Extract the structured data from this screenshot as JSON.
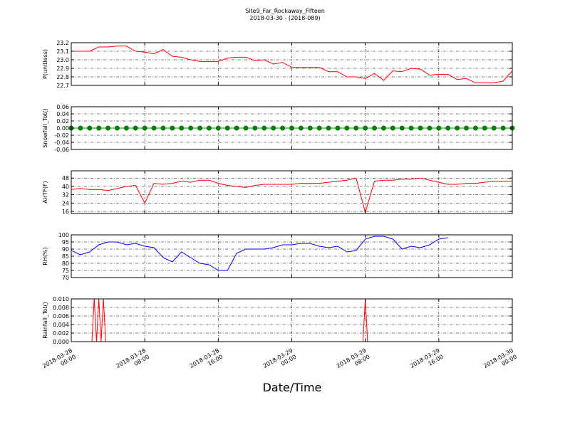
{
  "title": "Site9_Far_Rockaway_Fifteen",
  "subtitle": "2018-03-30 - (2018-089)",
  "xlabel": "Date/Time",
  "xlim": [
    "2018-03-28 00:00",
    "2018-03-30 00:00"
  ],
  "xticks": [
    "2018-03-28 00:00",
    "2018-03-28 08:00",
    "2018-03-28 16:00",
    "2018-03-29 00:00",
    "2018-03-29 08:00",
    "2018-03-29 16:00",
    "2018-03-30 00:00"
  ],
  "chart_data": [
    {
      "type": "line",
      "ylabel": "P(unitless)",
      "color": "red",
      "grid": true,
      "ylim": [
        22.7,
        23.2
      ],
      "yticks": [
        22.7,
        22.8,
        22.9,
        {
          "value": 23,
          "label": "23.0"
        },
        23.1,
        23.2
      ],
      "x": [
        "2018-03-28 00:00",
        "2018-03-28 01:00",
        "2018-03-28 02:00",
        "2018-03-28 03:00",
        "2018-03-28 04:00",
        "2018-03-28 05:00",
        "2018-03-28 06:00",
        "2018-03-28 07:00",
        "2018-03-28 08:00",
        "2018-03-28 09:00",
        "2018-03-28 10:00",
        "2018-03-28 11:00",
        "2018-03-28 12:00",
        "2018-03-28 13:00",
        "2018-03-28 14:00",
        "2018-03-28 15:00",
        "2018-03-28 16:00",
        "2018-03-28 17:00",
        "2018-03-28 18:00",
        "2018-03-28 19:00",
        "2018-03-28 20:00",
        "2018-03-28 21:00",
        "2018-03-28 22:00",
        "2018-03-28 23:00",
        "2018-03-29 00:00",
        "2018-03-29 01:00",
        "2018-03-29 02:00",
        "2018-03-29 03:00",
        "2018-03-29 04:00",
        "2018-03-29 05:00",
        "2018-03-29 06:00",
        "2018-03-29 07:00",
        "2018-03-29 08:00",
        "2018-03-29 09:00",
        "2018-03-29 10:00",
        "2018-03-29 11:00",
        "2018-03-29 12:00",
        "2018-03-29 13:00",
        "2018-03-29 14:00",
        "2018-03-29 15:00",
        "2018-03-29 16:00",
        "2018-03-29 17:00",
        "2018-03-29 18:00",
        "2018-03-29 19:00",
        "2018-03-29 20:00",
        "2018-03-29 21:00",
        "2018-03-29 22:00",
        "2018-03-29 23:00",
        "2018-03-30 00:00"
      ],
      "values": [
        23.1,
        23.1,
        23.1,
        23.15,
        23.15,
        23.16,
        23.16,
        23.1,
        23.09,
        23.07,
        23.12,
        23.04,
        23.03,
        23.0,
        22.98,
        22.98,
        22.98,
        23.02,
        23.03,
        23.03,
        22.99,
        23.0,
        22.95,
        22.97,
        22.91,
        22.91,
        22.91,
        22.91,
        22.86,
        22.86,
        22.8,
        22.8,
        22.78,
        22.84,
        22.76,
        22.87,
        22.86,
        22.9,
        22.89,
        22.82,
        22.83,
        22.83,
        22.77,
        22.78,
        22.73,
        22.73,
        22.73,
        22.75,
        22.87
      ]
    },
    {
      "type": "line",
      "ylabel": "Snowfall_Tot()",
      "color": "green",
      "marker": true,
      "grid": true,
      "ylim": [
        -0.06,
        0.06
      ],
      "yticks": [
        -0.06,
        -0.04,
        -0.02,
        {
          "value": 0,
          "label": "0.00"
        },
        0.02,
        0.04,
        0.06
      ],
      "x": [
        "2018-03-28 00:00",
        "2018-03-28 01:00",
        "2018-03-28 02:00",
        "2018-03-28 03:00",
        "2018-03-28 04:00",
        "2018-03-28 05:00",
        "2018-03-28 06:00",
        "2018-03-28 07:00",
        "2018-03-28 08:00",
        "2018-03-28 09:00",
        "2018-03-28 10:00",
        "2018-03-28 11:00",
        "2018-03-28 12:00",
        "2018-03-28 13:00",
        "2018-03-28 14:00",
        "2018-03-28 15:00",
        "2018-03-28 16:00",
        "2018-03-28 17:00",
        "2018-03-28 18:00",
        "2018-03-28 19:00",
        "2018-03-28 20:00",
        "2018-03-28 21:00",
        "2018-03-28 22:00",
        "2018-03-28 23:00",
        "2018-03-29 00:00",
        "2018-03-29 01:00",
        "2018-03-29 02:00",
        "2018-03-29 03:00",
        "2018-03-29 04:00",
        "2018-03-29 05:00",
        "2018-03-29 06:00",
        "2018-03-29 07:00",
        "2018-03-29 08:00",
        "2018-03-29 09:00",
        "2018-03-29 10:00",
        "2018-03-29 11:00",
        "2018-03-29 12:00",
        "2018-03-29 13:00",
        "2018-03-29 14:00",
        "2018-03-29 15:00",
        "2018-03-29 16:00",
        "2018-03-29 17:00",
        "2018-03-29 18:00",
        "2018-03-29 19:00",
        "2018-03-29 20:00",
        "2018-03-29 21:00",
        "2018-03-29 22:00",
        "2018-03-29 23:00",
        "2018-03-30 00:00"
      ],
      "values": [
        0,
        0,
        0,
        0,
        0,
        0,
        0,
        0,
        0,
        0,
        0,
        0,
        0,
        0,
        0,
        0,
        0,
        0,
        0,
        0,
        0,
        0,
        0,
        0,
        0,
        0,
        0,
        0,
        0,
        0,
        0,
        0,
        0,
        0,
        0,
        0,
        0,
        0,
        0,
        0,
        0,
        0,
        0,
        0,
        0,
        0,
        0,
        0,
        0
      ]
    },
    {
      "type": "line",
      "ylabel": "AirTF(F)",
      "color": "red",
      "grid": true,
      "ylim": [
        14,
        55
      ],
      "yticks": [
        16,
        24,
        32,
        40,
        48
      ],
      "x": [
        "2018-03-28 00:00",
        "2018-03-28 01:00",
        "2018-03-28 02:00",
        "2018-03-28 03:00",
        "2018-03-28 04:00",
        "2018-03-28 05:00",
        "2018-03-28 06:00",
        "2018-03-28 07:00",
        "2018-03-28 08:00",
        "2018-03-28 09:00",
        "2018-03-28 10:00",
        "2018-03-28 11:00",
        "2018-03-28 12:00",
        "2018-03-28 13:00",
        "2018-03-28 14:00",
        "2018-03-28 15:00",
        "2018-03-28 16:00",
        "2018-03-28 17:00",
        "2018-03-28 18:00",
        "2018-03-28 19:00",
        "2018-03-28 20:00",
        "2018-03-28 21:00",
        "2018-03-28 22:00",
        "2018-03-28 23:00",
        "2018-03-29 00:00",
        "2018-03-29 01:00",
        "2018-03-29 02:00",
        "2018-03-29 03:00",
        "2018-03-29 04:00",
        "2018-03-29 05:00",
        "2018-03-29 06:00",
        "2018-03-29 07:00",
        "2018-03-29 08:00",
        "2018-03-29 09:00",
        "2018-03-29 10:00",
        "2018-03-29 11:00",
        "2018-03-29 12:00",
        "2018-03-29 13:00",
        "2018-03-29 14:00",
        "2018-03-29 15:00",
        "2018-03-29 16:00",
        "2018-03-29 17:00",
        "2018-03-29 18:00",
        "2018-03-29 19:00",
        "2018-03-29 20:00",
        "2018-03-29 21:00",
        "2018-03-29 22:00",
        "2018-03-29 23:00",
        "2018-03-30 00:00"
      ],
      "values": [
        37,
        38,
        37,
        37,
        36,
        38,
        40,
        41,
        24,
        43,
        42,
        43,
        45,
        44,
        46,
        46,
        43,
        41,
        40,
        39,
        41,
        42,
        42,
        42,
        42,
        43,
        43,
        43,
        44,
        45,
        46,
        48,
        15,
        45,
        46,
        46,
        47,
        47,
        48,
        46,
        44,
        42,
        42,
        43,
        43,
        44,
        45,
        45,
        45
      ]
    },
    {
      "type": "line",
      "ylabel": "RH(%)",
      "color": "blue",
      "grid": true,
      "ylim": [
        70,
        100
      ],
      "yticks": [
        70,
        75,
        80,
        85,
        90,
        95,
        100
      ],
      "x": [
        "2018-03-28 00:00",
        "2018-03-28 01:00",
        "2018-03-28 02:00",
        "2018-03-28 03:00",
        "2018-03-28 04:00",
        "2018-03-28 05:00",
        "2018-03-28 06:00",
        "2018-03-28 07:00",
        "2018-03-28 08:00",
        "2018-03-28 09:00",
        "2018-03-28 10:00",
        "2018-03-28 11:00",
        "2018-03-28 12:00",
        "2018-03-28 13:00",
        "2018-03-28 14:00",
        "2018-03-28 15:00",
        "2018-03-28 16:00",
        "2018-03-28 17:00",
        "2018-03-28 18:00",
        "2018-03-28 19:00",
        "2018-03-28 20:00",
        "2018-03-28 21:00",
        "2018-03-28 22:00",
        "2018-03-28 23:00",
        "2018-03-29 00:00",
        "2018-03-29 01:00",
        "2018-03-29 02:00",
        "2018-03-29 03:00",
        "2018-03-29 04:00",
        "2018-03-29 05:00",
        "2018-03-29 06:00",
        "2018-03-29 07:00",
        "2018-03-29 08:00",
        "2018-03-29 09:00",
        "2018-03-29 10:00",
        "2018-03-29 11:00",
        "2018-03-29 12:00",
        "2018-03-29 13:00",
        "2018-03-29 14:00",
        "2018-03-29 15:00",
        "2018-03-29 16:00",
        "2018-03-29 17:00"
      ],
      "values": [
        89,
        86,
        88,
        93,
        95,
        95,
        93,
        94,
        92,
        91,
        84,
        81,
        88,
        84,
        80,
        79,
        75,
        75,
        87,
        90,
        90,
        90,
        91,
        93,
        93,
        94,
        94,
        92,
        91,
        92,
        88,
        89,
        97,
        99,
        99,
        97,
        90,
        92,
        91,
        93,
        97,
        98
      ]
    },
    {
      "type": "line",
      "ylabel": "Rainfall_Tot()",
      "color": "red",
      "grid": true,
      "ylim": [
        0,
        0.01
      ],
      "yticks": [
        {
          "value": 0,
          "label": "0.000"
        },
        {
          "value": 0.002,
          "label": "0.002"
        },
        {
          "value": 0.004,
          "label": "0.004"
        },
        {
          "value": 0.006,
          "label": "0.006"
        },
        {
          "value": 0.008,
          "label": "0.008"
        },
        {
          "value": 0.01,
          "label": "0.010"
        }
      ],
      "x": [
        "2018-03-28 00:00",
        "2018-03-28 02:15",
        "2018-03-28 02:30",
        "2018-03-28 02:45",
        "2018-03-28 03:00",
        "2018-03-28 03:15",
        "2018-03-28 03:30",
        "2018-03-28 03:45",
        "2018-03-29 07:45",
        "2018-03-29 08:00",
        "2018-03-29 08:15",
        "2018-03-30 00:00"
      ],
      "values": [
        0,
        0,
        0.01,
        0,
        0.01,
        0,
        0.01,
        0,
        0,
        0.01,
        0,
        0
      ]
    }
  ]
}
